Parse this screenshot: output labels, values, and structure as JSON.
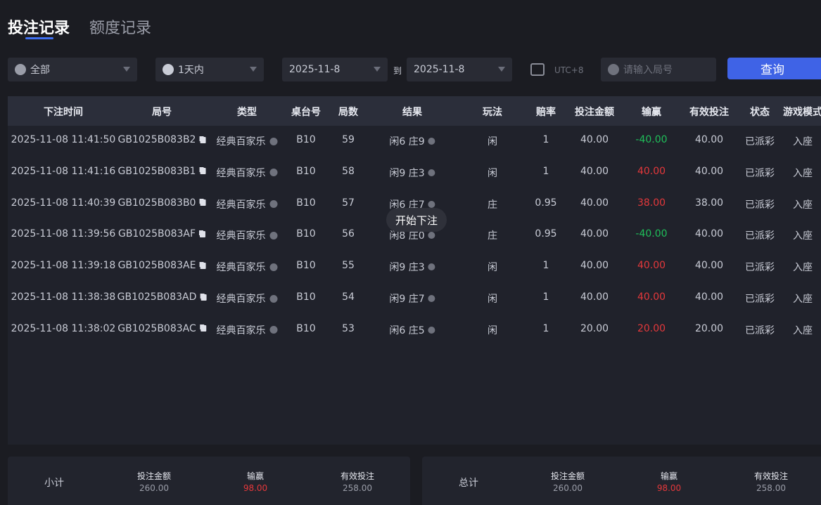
{
  "tabs": {
    "active": "投注记录",
    "other": "额度记录"
  },
  "filters": {
    "game": "全部",
    "range": "1天内",
    "start_date": "2025-11-8",
    "to": "到",
    "end_date": "2025-11-8",
    "timezone": "UTC+8",
    "round_placeholder": "请输入局号",
    "search": "查询"
  },
  "table": {
    "columns": [
      "下注时间",
      "局号",
      "类型",
      "桌台号",
      "局数",
      "结果",
      "玩法",
      "赔率",
      "投注金额",
      "输赢",
      "有效投注",
      "状态",
      "游戏模式"
    ],
    "rows": [
      [
        "2025-11-08 11:41:50",
        "GB1025B083B2",
        "经典百家乐",
        "B10",
        "59",
        "闲6 庄9",
        "闲",
        "1",
        "40.00",
        "-40.00",
        "40.00",
        "已派彩",
        "入座"
      ],
      [
        "2025-11-08 11:41:16",
        "GB1025B083B1",
        "经典百家乐",
        "B10",
        "58",
        "闲9 庄3",
        "闲",
        "1",
        "40.00",
        "40.00",
        "40.00",
        "已派彩",
        "入座"
      ],
      [
        "2025-11-08 11:40:39",
        "GB1025B083B0",
        "经典百家乐",
        "B10",
        "57",
        "闲6 庄7",
        "庄",
        "0.95",
        "40.00",
        "38.00",
        "38.00",
        "已派彩",
        "入座"
      ],
      [
        "2025-11-08 11:39:56",
        "GB1025B083AF",
        "经典百家乐",
        "B10",
        "56",
        "闲8 庄0",
        "庄",
        "0.95",
        "40.00",
        "-40.00",
        "40.00",
        "已派彩",
        "入座"
      ],
      [
        "2025-11-08 11:39:18",
        "GB1025B083AE",
        "经典百家乐",
        "B10",
        "55",
        "闲9 庄3",
        "闲",
        "1",
        "40.00",
        "40.00",
        "40.00",
        "已派彩",
        "入座"
      ],
      [
        "2025-11-08 11:38:38",
        "GB1025B083AD",
        "经典百家乐",
        "B10",
        "54",
        "闲9 庄7",
        "闲",
        "1",
        "40.00",
        "40.00",
        "40.00",
        "已派彩",
        "入座"
      ],
      [
        "2025-11-08 11:38:02",
        "GB1025B083AC",
        "经典百家乐",
        "B10",
        "53",
        "闲6 庄5",
        "闲",
        "1",
        "20.00",
        "20.00",
        "20.00",
        "已派彩",
        "入座"
      ]
    ]
  },
  "toast": "开始下注",
  "subtotal": {
    "label": "小计",
    "bet_label": "投注金额",
    "bet": "260.00",
    "win_label": "输赢",
    "win": "98.00",
    "valid_label": "有效投注",
    "valid": "258.00"
  },
  "total": {
    "label": "总计",
    "bet_label": "投注金额",
    "bet": "260.00",
    "win_label": "输赢",
    "win": "98.00",
    "valid_label": "有效投注",
    "valid": "258.00"
  }
}
